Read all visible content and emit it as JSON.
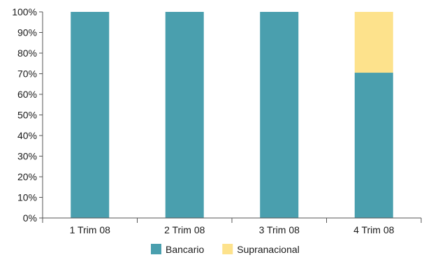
{
  "chart_data": {
    "type": "bar",
    "stacked": true,
    "categories": [
      "1 Trim 08",
      "2 Trim 08",
      "3 Trim 08",
      "4 Trim 08"
    ],
    "series": [
      {
        "name": "Bancario",
        "values": [
          100,
          100,
          100,
          70.5
        ],
        "color": "#4a9fae"
      },
      {
        "name": "Supranacional",
        "values": [
          0,
          0,
          0,
          29.5
        ],
        "color": "#fde28c"
      }
    ],
    "ylim": [
      0,
      100
    ],
    "yticks": [
      0,
      10,
      20,
      30,
      40,
      50,
      60,
      70,
      80,
      90,
      100
    ],
    "ytick_labels": [
      "0%",
      "10%",
      "20%",
      "30%",
      "40%",
      "50%",
      "60%",
      "70%",
      "80%",
      "90%",
      "100%"
    ],
    "grid": false,
    "legend_position": "bottom",
    "title": "",
    "xlabel": "",
    "ylabel": ""
  }
}
